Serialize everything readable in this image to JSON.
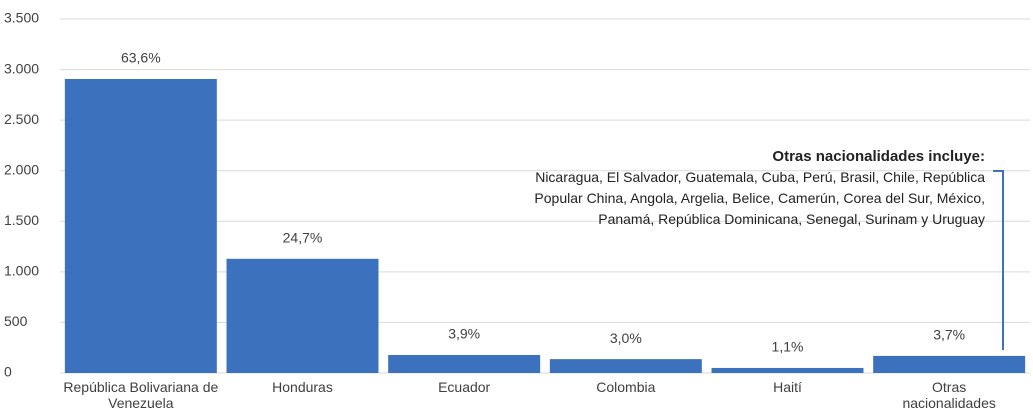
{
  "chart_data": {
    "type": "bar",
    "categories": [
      "República Bolivariana de Venezuela",
      "Honduras",
      "Ecuador",
      "Colombia",
      "Haití",
      "Otras nacionalidades"
    ],
    "values": [
      2907,
      1129,
      178,
      137,
      50,
      169
    ],
    "shares": [
      {
        "value": 63.6,
        "label": "63,6%"
      },
      {
        "value": 24.7,
        "label": "24,7%"
      },
      {
        "value": 3.9,
        "label": "3,9%"
      },
      {
        "value": 3.0,
        "label": "3,0%"
      },
      {
        "value": 1.1,
        "label": "1,1%"
      },
      {
        "value": 3.7,
        "label": "3,7%"
      }
    ],
    "color": "#3b71bd",
    "ylim": [
      0,
      3500
    ],
    "yticks": [
      0,
      500,
      {
        "value": 1000,
        "label": "1.000"
      },
      {
        "value": 1500,
        "label": "1.500"
      },
      {
        "value": 2000,
        "label": "2.000"
      },
      {
        "value": 2500,
        "label": "2.500"
      },
      {
        "value": 3000,
        "label": "3.000"
      },
      {
        "value": 3500,
        "label": "3.500"
      }
    ],
    "grid": true,
    "annotation": {
      "title": "Otras nacionalidades incluye:",
      "text": "Nicaragua, El Salvador, Guatemala, Cuba, Perú, Brasil, Chile, República Popular China, Angola, Argelia, Belice, Camerún, Corea del Sur, México, Panamá, República Dominicana, Senegal, Surinam y Uruguay"
    }
  }
}
